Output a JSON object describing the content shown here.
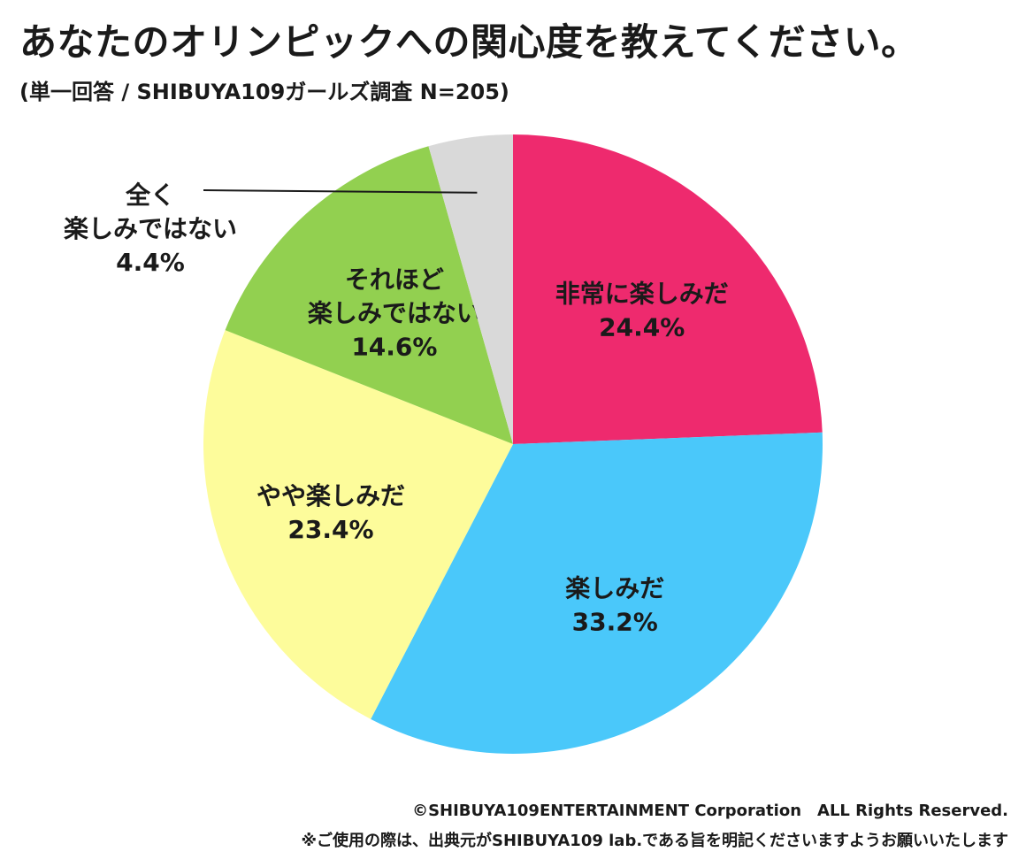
{
  "header": {
    "title": "あなたのオリンピックへの関心度を教えてください。",
    "subtitle": "(単一回答 / SHIBUYA109ガールズ調査 N=205)"
  },
  "chart_data": {
    "type": "pie",
    "title": "あなたのオリンピックへの関心度を教えてください。",
    "subtitle": "(単一回答 / SHIBUYA109ガールズ調査 N=205)",
    "start": "12 o'clock",
    "direction": "clockwise",
    "slices": [
      {
        "label_lines": [
          "非常に楽しみだ"
        ],
        "value": 24.4,
        "value_label": "24.4%",
        "color": "#EE2A6E"
      },
      {
        "label_lines": [
          "楽しみだ"
        ],
        "value": 33.2,
        "value_label": "33.2%",
        "color": "#4AC8FA"
      },
      {
        "label_lines": [
          "やや楽しみだ"
        ],
        "value": 23.4,
        "value_label": "23.4%",
        "color": "#FDFC9B"
      },
      {
        "label_lines": [
          "それほど",
          "楽しみではない"
        ],
        "value": 14.6,
        "value_label": "14.6%",
        "color": "#92D050"
      },
      {
        "label_lines": [
          "全く",
          "楽しみではない"
        ],
        "value": 4.4,
        "value_label": "4.4%",
        "color": "#D9D9D9",
        "callout": "outside-left"
      }
    ]
  },
  "footer": {
    "copyright": "©SHIBUYA109ENTERTAINMENT Corporation　ALL Rights Reserved.",
    "note": "※ご使用の際は、出典元がSHIBUYA109 lab.である旨を明記くださいますようお願いいたします"
  }
}
